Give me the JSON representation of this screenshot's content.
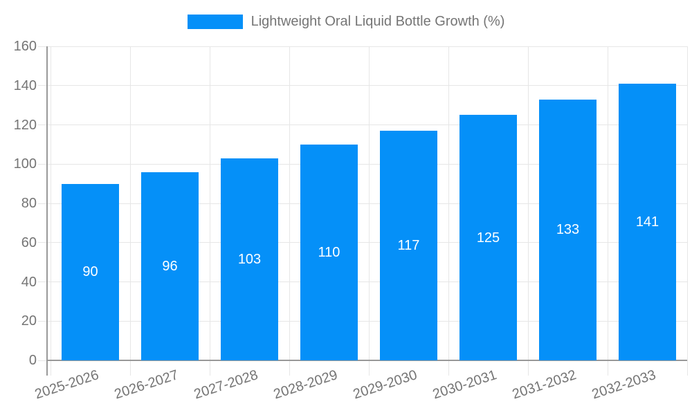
{
  "legend": {
    "label": "Lightweight Oral Liquid Bottle Growth (%)"
  },
  "chart_data": {
    "type": "bar",
    "title": "Lightweight Oral Liquid Bottle Growth (%)",
    "legend_position": "top",
    "categories": [
      "2025-2026",
      "2026-2027",
      "2027-2028",
      "2028-2029",
      "2029-2030",
      "2030-2031",
      "2031-2032",
      "2032-2033"
    ],
    "values": [
      90,
      96,
      103,
      110,
      117,
      125,
      133,
      141
    ],
    "value_labels": [
      "90",
      "96",
      "103",
      "110",
      "117",
      "125",
      "133",
      "141"
    ],
    "xlabel": "",
    "ylabel": "",
    "ylim": [
      0,
      160
    ],
    "yticks": [
      0,
      20,
      40,
      60,
      80,
      100,
      120,
      140,
      160
    ],
    "grid": true,
    "x_label_rotation_deg": -18
  },
  "colors": {
    "bar": "#0590F8",
    "gridline": "#e6e6e6",
    "axis": "#999999",
    "axis_text": "#757575",
    "value_label": "#ffffff",
    "background": "#ffffff"
  }
}
